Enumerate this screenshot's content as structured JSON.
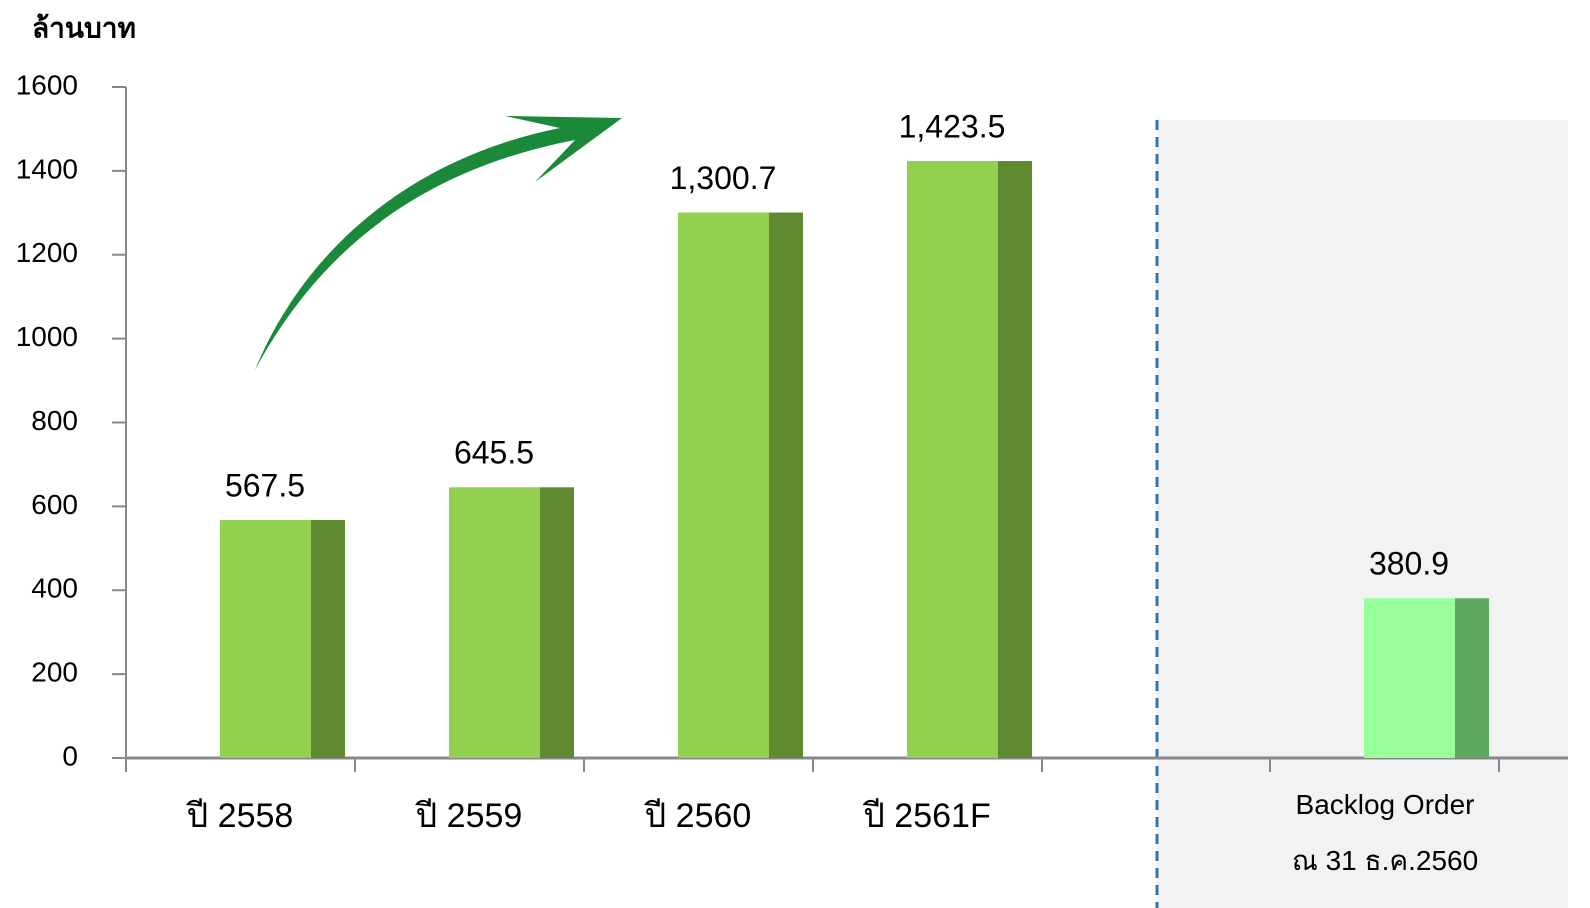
{
  "chart_data": [
    {
      "type": "bar",
      "title": "ล้านบาท",
      "categories": [
        "ปี 2558",
        "ปี 2559",
        "ปี 2560",
        "ปี 2561F"
      ],
      "values": [
        567.5,
        645.5,
        1300.7,
        1423.5
      ],
      "value_labels": [
        "567.5",
        "645.5",
        "1,300.7",
        "1,423.5"
      ],
      "color": "#92d050",
      "side_color": "#5f8a32",
      "ylim": [
        0,
        1600
      ],
      "yticks": [
        0,
        200,
        400,
        600,
        800,
        1000,
        1200,
        1400,
        1600
      ]
    },
    {
      "type": "bar",
      "categories": [
        "Backlog Order\nณ 31 ธ.ค.2560"
      ],
      "values": [
        380.9
      ],
      "value_labels": [
        "380.9"
      ],
      "color": "#99ff99",
      "side_color": "#5fa860",
      "ylim": [
        0,
        1600
      ]
    }
  ]
}
